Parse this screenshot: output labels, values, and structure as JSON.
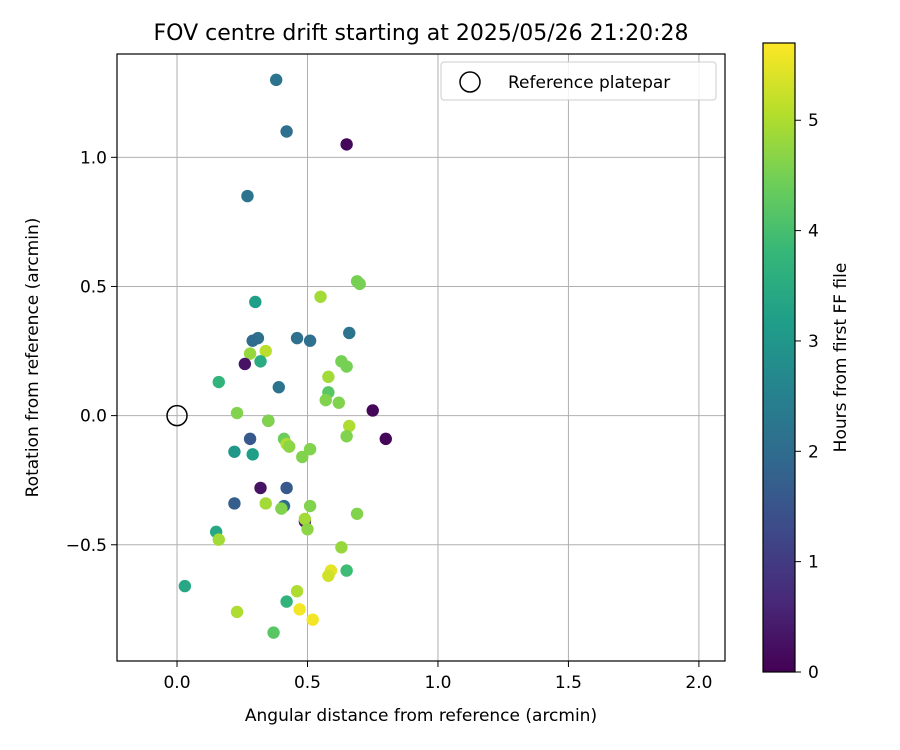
{
  "chart_data": {
    "type": "scatter",
    "title": "FOV centre drift starting at 2025/05/26 21:20:28",
    "xlabel": "Angular distance from reference (arcmin)",
    "ylabel": "Rotation from reference (arcmin)",
    "xlim": [
      -0.23,
      2.1
    ],
    "ylim": [
      -0.95,
      1.4
    ],
    "xticks": [
      0.0,
      0.5,
      1.0,
      1.5,
      2.0
    ],
    "xtick_labels": [
      "0.0",
      "0.5",
      "1.0",
      "1.5",
      "2.0"
    ],
    "yticks": [
      -0.5,
      0.0,
      0.5,
      1.0
    ],
    "ytick_labels": [
      "−0.5",
      "0.0",
      "0.5",
      "1.0"
    ],
    "grid": true,
    "legend": {
      "entries": [
        "Reference platepar"
      ],
      "placement": "top-right"
    },
    "reference_point": {
      "x": 0.0,
      "y": 0.0
    },
    "colorbar": {
      "label": "Hours from first FF file",
      "colormap": "viridis",
      "range": [
        0,
        5.7
      ],
      "ticks": [
        0,
        1,
        2,
        3,
        4,
        5
      ],
      "tick_labels": [
        "0",
        "1",
        "2",
        "3",
        "4",
        "5"
      ],
      "stops": [
        "#440154",
        "#482878",
        "#3e4989",
        "#31688e",
        "#26828e",
        "#1f9e89",
        "#35b779",
        "#6ece58",
        "#b5de2b",
        "#fde725"
      ]
    },
    "points": [
      {
        "x": 0.38,
        "y": 1.3,
        "c": 2.2
      },
      {
        "x": 0.42,
        "y": 1.1,
        "c": 2.1
      },
      {
        "x": 0.65,
        "y": 1.05,
        "c": 0.1
      },
      {
        "x": 0.27,
        "y": 0.85,
        "c": 2.2
      },
      {
        "x": 0.69,
        "y": 0.52,
        "c": 4.5
      },
      {
        "x": 0.7,
        "y": 0.51,
        "c": 4.5
      },
      {
        "x": 0.55,
        "y": 0.46,
        "c": 4.9
      },
      {
        "x": 0.3,
        "y": 0.44,
        "c": 3.2
      },
      {
        "x": 0.66,
        "y": 0.32,
        "c": 2.2
      },
      {
        "x": 0.31,
        "y": 0.3,
        "c": 2.1
      },
      {
        "x": 0.29,
        "y": 0.29,
        "c": 2.0
      },
      {
        "x": 0.46,
        "y": 0.3,
        "c": 2.1
      },
      {
        "x": 0.51,
        "y": 0.29,
        "c": 2.1
      },
      {
        "x": 0.34,
        "y": 0.25,
        "c": 5.1
      },
      {
        "x": 0.28,
        "y": 0.24,
        "c": 4.8
      },
      {
        "x": 0.32,
        "y": 0.21,
        "c": 3.5
      },
      {
        "x": 0.26,
        "y": 0.2,
        "c": 0.3
      },
      {
        "x": 0.63,
        "y": 0.21,
        "c": 4.5
      },
      {
        "x": 0.65,
        "y": 0.19,
        "c": 4.5
      },
      {
        "x": 0.58,
        "y": 0.15,
        "c": 4.9
      },
      {
        "x": 0.16,
        "y": 0.13,
        "c": 3.7
      },
      {
        "x": 0.39,
        "y": 0.11,
        "c": 2.2
      },
      {
        "x": 0.58,
        "y": 0.09,
        "c": 4.2
      },
      {
        "x": 0.57,
        "y": 0.06,
        "c": 4.6
      },
      {
        "x": 0.62,
        "y": 0.05,
        "c": 4.6
      },
      {
        "x": 0.75,
        "y": 0.02,
        "c": 0.1
      },
      {
        "x": 0.23,
        "y": 0.01,
        "c": 4.6
      },
      {
        "x": 0.35,
        "y": -0.02,
        "c": 1.9
      },
      {
        "x": 0.35,
        "y": -0.02,
        "c": 4.6
      },
      {
        "x": 0.66,
        "y": -0.04,
        "c": 5.0
      },
      {
        "x": 0.65,
        "y": -0.08,
        "c": 4.6
      },
      {
        "x": 0.28,
        "y": -0.09,
        "c": 1.6
      },
      {
        "x": 0.8,
        "y": -0.09,
        "c": 0.1
      },
      {
        "x": 0.41,
        "y": -0.09,
        "c": 4.4
      },
      {
        "x": 0.42,
        "y": -0.11,
        "c": 5.0
      },
      {
        "x": 0.43,
        "y": -0.12,
        "c": 4.7
      },
      {
        "x": 0.51,
        "y": -0.13,
        "c": 4.6
      },
      {
        "x": 0.22,
        "y": -0.14,
        "c": 3.0
      },
      {
        "x": 0.29,
        "y": -0.15,
        "c": 3.2
      },
      {
        "x": 0.48,
        "y": -0.16,
        "c": 4.6
      },
      {
        "x": 0.32,
        "y": -0.28,
        "c": 0.3
      },
      {
        "x": 0.42,
        "y": -0.28,
        "c": 1.6
      },
      {
        "x": 0.22,
        "y": -0.34,
        "c": 1.7
      },
      {
        "x": 0.34,
        "y": -0.34,
        "c": 4.9
      },
      {
        "x": 0.41,
        "y": -0.35,
        "c": 2.0
      },
      {
        "x": 0.4,
        "y": -0.36,
        "c": 4.6
      },
      {
        "x": 0.51,
        "y": -0.35,
        "c": 4.6
      },
      {
        "x": 0.69,
        "y": -0.38,
        "c": 4.6
      },
      {
        "x": 0.49,
        "y": -0.41,
        "c": 0.2
      },
      {
        "x": 0.49,
        "y": -0.4,
        "c": 4.9
      },
      {
        "x": 0.5,
        "y": -0.44,
        "c": 4.7
      },
      {
        "x": 0.15,
        "y": -0.45,
        "c": 3.4
      },
      {
        "x": 0.16,
        "y": -0.48,
        "c": 4.9
      },
      {
        "x": 0.63,
        "y": -0.51,
        "c": 4.8
      },
      {
        "x": 0.65,
        "y": -0.6,
        "c": 3.9
      },
      {
        "x": 0.59,
        "y": -0.6,
        "c": 5.5
      },
      {
        "x": 0.58,
        "y": -0.62,
        "c": 5.3
      },
      {
        "x": 0.03,
        "y": -0.66,
        "c": 3.4
      },
      {
        "x": 0.46,
        "y": -0.68,
        "c": 5.0
      },
      {
        "x": 0.42,
        "y": -0.72,
        "c": 3.7
      },
      {
        "x": 0.23,
        "y": -0.76,
        "c": 5.0
      },
      {
        "x": 0.47,
        "y": -0.75,
        "c": 5.6
      },
      {
        "x": 0.52,
        "y": -0.79,
        "c": 5.6
      },
      {
        "x": 0.37,
        "y": -0.84,
        "c": 4.2
      }
    ]
  }
}
